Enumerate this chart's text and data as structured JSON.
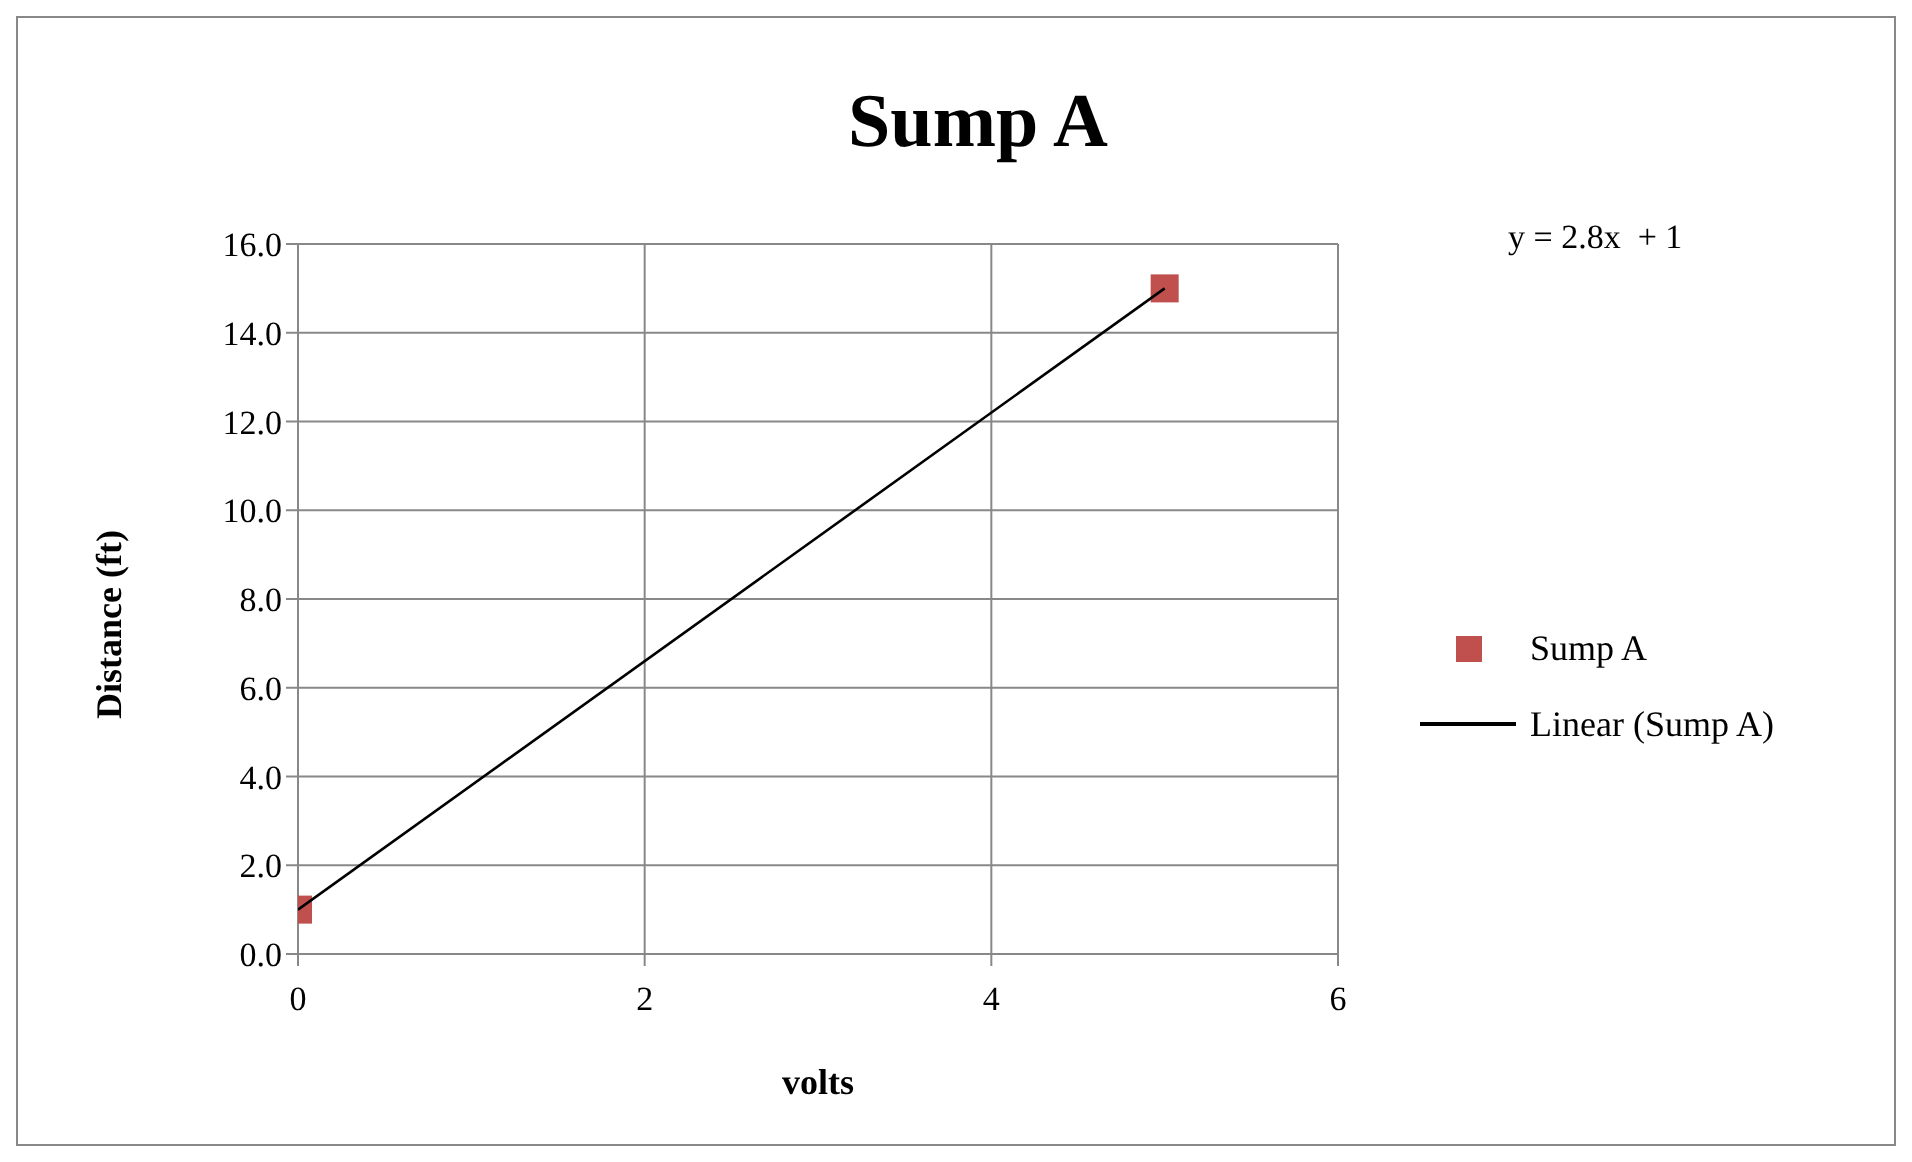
{
  "chart_data": {
    "type": "scatter",
    "title": "Sump A",
    "xlabel": "volts",
    "ylabel": "Distance (ft)",
    "x": [
      0,
      5
    ],
    "series": [
      {
        "name": "Sump A",
        "color": "#c0504d",
        "values": [
          1,
          15
        ],
        "marker": "square"
      },
      {
        "name": "Linear (Sump A)",
        "type": "line",
        "color": "#000000",
        "values": [
          1,
          15
        ],
        "marker": "none"
      }
    ],
    "xlim": [
      0,
      6
    ],
    "xticks": [
      0,
      2,
      4,
      6
    ],
    "ylim": [
      0,
      16
    ],
    "yticks": [
      {
        "value": 0,
        "label": "0.0"
      },
      {
        "value": 2,
        "label": "2.0"
      },
      {
        "value": 4,
        "label": "4.0"
      },
      {
        "value": 6,
        "label": "6.0"
      },
      {
        "value": 8,
        "label": "8.0"
      },
      {
        "value": 10,
        "label": "10.0"
      },
      {
        "value": 12,
        "label": "12.0"
      },
      {
        "value": 14,
        "label": "14.0"
      },
      {
        "value": 16,
        "label": "16.0"
      }
    ],
    "annotations": [
      "y = 2.8x  + 1"
    ],
    "grid": true,
    "legend": "right"
  }
}
